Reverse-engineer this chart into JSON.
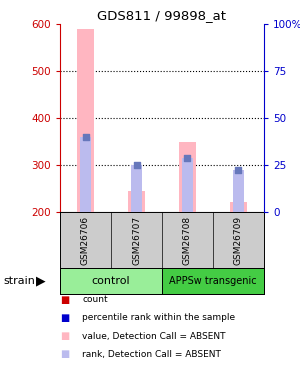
{
  "title": "GDS811 / 99898_at",
  "samples": [
    "GSM26706",
    "GSM26707",
    "GSM26708",
    "GSM26709"
  ],
  "ylim_left": [
    200,
    600
  ],
  "ylim_right": [
    0,
    100
  ],
  "yticks_left": [
    200,
    300,
    400,
    500,
    600
  ],
  "yticks_right": [
    0,
    25,
    50,
    75,
    100
  ],
  "ytick_labels_right": [
    "0",
    "25",
    "50",
    "75",
    "100%"
  ],
  "bar_values": [
    590,
    245,
    349,
    222
  ],
  "rank_dot_values": [
    360,
    300,
    316,
    290
  ],
  "rank_bar_values": [
    360,
    300,
    316,
    290
  ],
  "absent_value_color": "#FFB6C1",
  "absent_rank_color": "#BBBBEE",
  "rank_dot_color": "#6677BB",
  "left_ytick_color": "#CC0000",
  "right_ytick_color": "#0000CC",
  "sample_box_color": "#CCCCCC",
  "control_box_color": "#99EE99",
  "transgenic_box_color": "#44CC44",
  "background_color": "#FFFFFF",
  "grid_color": "#000000",
  "legend_items": [
    {
      "color": "#CC0000",
      "label": "count"
    },
    {
      "color": "#0000CC",
      "label": "percentile rank within the sample"
    },
    {
      "color": "#FFB6C1",
      "label": "value, Detection Call = ABSENT"
    },
    {
      "color": "#BBBBEE",
      "label": "rank, Detection Call = ABSENT"
    }
  ]
}
